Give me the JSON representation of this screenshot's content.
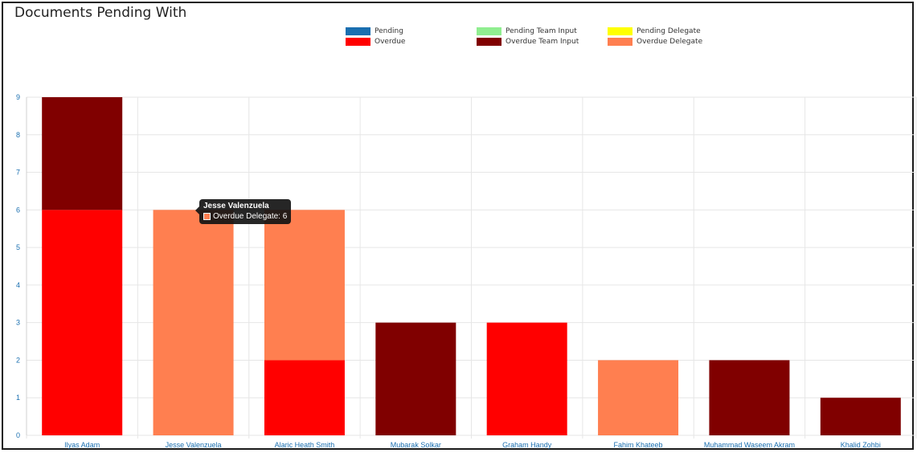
{
  "chart_data": {
    "type": "bar",
    "stacked": true,
    "title": "Documents Pending With",
    "categories": [
      "Ilyas Adam",
      "Jesse Valenzuela",
      "Alaric Heath Smith",
      "Mubarak Solkar",
      "Graham Handy",
      "Fahim Khateeb",
      "Muhammad Waseem Akram",
      "Khalid Zohbi"
    ],
    "ylim": [
      0,
      9
    ],
    "yticks": [
      0,
      1,
      2,
      3,
      4,
      5,
      6,
      7,
      8,
      9
    ],
    "grid": true,
    "legend_position": "top-center",
    "series": [
      {
        "name": "Pending",
        "color": "#1a6fb0",
        "values": [
          0,
          0,
          0,
          0,
          0,
          0,
          0,
          0
        ]
      },
      {
        "name": "Overdue",
        "color": "#ff0000",
        "values": [
          6,
          0,
          2,
          0,
          3,
          0,
          0,
          0
        ]
      },
      {
        "name": "Pending Team Input",
        "color": "#90ee90",
        "values": [
          0,
          0,
          0,
          0,
          0,
          0,
          0,
          0
        ]
      },
      {
        "name": "Overdue Team Input",
        "color": "#800000",
        "values": [
          3,
          0,
          0,
          3,
          0,
          0,
          2,
          1
        ]
      },
      {
        "name": "Pending Delegate",
        "color": "#ffff00",
        "values": [
          0,
          0,
          0,
          0,
          0,
          0,
          0,
          0
        ]
      },
      {
        "name": "Overdue Delegate",
        "color": "#ff7f50",
        "values": [
          0,
          6,
          4,
          0,
          0,
          2,
          0,
          0
        ]
      }
    ],
    "tooltip": {
      "title": "Jesse Valenzuela",
      "text": "Overdue Delegate: 6",
      "color": "#ff7f50"
    }
  }
}
